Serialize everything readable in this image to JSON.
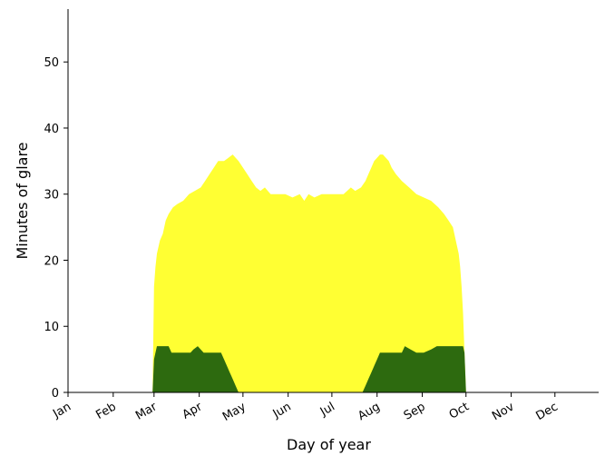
{
  "chart_data": {
    "type": "area",
    "title": "",
    "xlabel": "Day of year",
    "ylabel": "Minutes of glare",
    "xlim": [
      1,
      365
    ],
    "ylim": [
      0,
      58
    ],
    "yticks": [
      0,
      10,
      20,
      30,
      40,
      50
    ],
    "xtick_labels": [
      "Jan",
      "Feb",
      "Mar",
      "Apr",
      "May",
      "Jun",
      "Jul",
      "Aug",
      "Sep",
      "Oct",
      "Nov",
      "Dec"
    ],
    "xtick_days": [
      1,
      32,
      60,
      91,
      121,
      152,
      182,
      213,
      244,
      274,
      305,
      335
    ],
    "grid": false,
    "colors": {
      "upper": "#ffff33",
      "lower": "#2d6a0f"
    },
    "series": [
      {
        "color_key": "upper",
        "points": [
          [
            59,
            0
          ],
          [
            60,
            16
          ],
          [
            61,
            19
          ],
          [
            62,
            21
          ],
          [
            64,
            23
          ],
          [
            66,
            24
          ],
          [
            68,
            26
          ],
          [
            70,
            27
          ],
          [
            73,
            28
          ],
          [
            76,
            28.5
          ],
          [
            80,
            29
          ],
          [
            84,
            30
          ],
          [
            88,
            30.5
          ],
          [
            92,
            31
          ],
          [
            95,
            32
          ],
          [
            98,
            33
          ],
          [
            101,
            34
          ],
          [
            104,
            35
          ],
          [
            108,
            35
          ],
          [
            111,
            35.5
          ],
          [
            114,
            36
          ],
          [
            116,
            35.5
          ],
          [
            118,
            35
          ],
          [
            121,
            34
          ],
          [
            124,
            33
          ],
          [
            127,
            32
          ],
          [
            130,
            31
          ],
          [
            133,
            30.5
          ],
          [
            136,
            31
          ],
          [
            140,
            30
          ],
          [
            145,
            30
          ],
          [
            150,
            30
          ],
          [
            155,
            29.5
          ],
          [
            160,
            30
          ],
          [
            163,
            29
          ],
          [
            166,
            30
          ],
          [
            170,
            29.5
          ],
          [
            175,
            30
          ],
          [
            180,
            30
          ],
          [
            185,
            30
          ],
          [
            190,
            30
          ],
          [
            195,
            31
          ],
          [
            198,
            30.5
          ],
          [
            202,
            31
          ],
          [
            205,
            32
          ],
          [
            207,
            33
          ],
          [
            209,
            34
          ],
          [
            211,
            35
          ],
          [
            213,
            35.5
          ],
          [
            215,
            36
          ],
          [
            217,
            36
          ],
          [
            219,
            35.5
          ],
          [
            221,
            35
          ],
          [
            223,
            34
          ],
          [
            226,
            33
          ],
          [
            230,
            32
          ],
          [
            235,
            31
          ],
          [
            240,
            30
          ],
          [
            245,
            29.5
          ],
          [
            250,
            29
          ],
          [
            255,
            28
          ],
          [
            259,
            27
          ],
          [
            262,
            26
          ],
          [
            265,
            25
          ],
          [
            267,
            23
          ],
          [
            269,
            21
          ],
          [
            270,
            19
          ],
          [
            271,
            16
          ],
          [
            272,
            12
          ],
          [
            273,
            6
          ],
          [
            274,
            0
          ]
        ]
      },
      {
        "color_key": "lower",
        "points": [
          [
            59,
            0
          ],
          [
            60,
            5
          ],
          [
            61,
            6
          ],
          [
            62,
            7
          ],
          [
            70,
            7
          ],
          [
            72,
            6
          ],
          [
            85,
            6
          ],
          [
            87,
            6.5
          ],
          [
            90,
            7
          ],
          [
            92,
            6.5
          ],
          [
            94,
            6
          ],
          [
            106,
            6
          ],
          [
            108,
            5
          ],
          [
            110,
            4
          ],
          [
            112,
            3
          ],
          [
            114,
            2
          ],
          [
            116,
            1
          ],
          [
            118,
            0
          ],
          [
            203,
            0
          ],
          [
            205,
            1
          ],
          [
            207,
            2
          ],
          [
            209,
            3
          ],
          [
            211,
            4
          ],
          [
            213,
            5
          ],
          [
            215,
            6
          ],
          [
            230,
            6
          ],
          [
            232,
            7
          ],
          [
            236,
            6.5
          ],
          [
            240,
            6
          ],
          [
            245,
            6
          ],
          [
            250,
            6.5
          ],
          [
            254,
            7
          ],
          [
            272,
            7
          ],
          [
            273,
            6
          ],
          [
            274,
            0
          ]
        ]
      }
    ]
  }
}
